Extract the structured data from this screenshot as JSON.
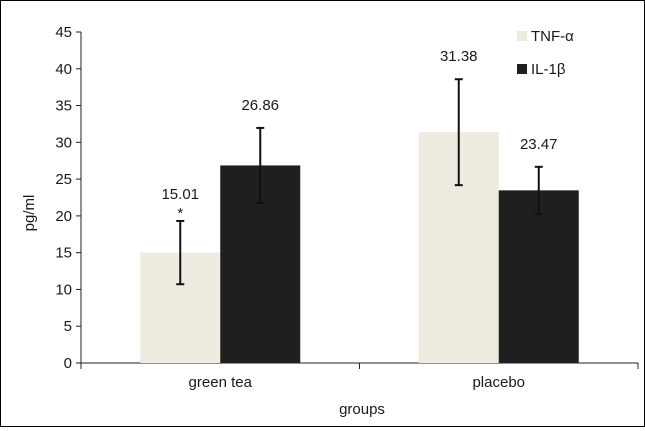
{
  "chart_data": {
    "type": "bar",
    "title": "",
    "xlabel": "groups",
    "ylabel": "pg/ml",
    "ylim": [
      0,
      45
    ],
    "yticks": [
      0,
      5,
      10,
      15,
      20,
      25,
      30,
      35,
      40,
      45
    ],
    "grid": false,
    "legend_position": "top-right",
    "categories": [
      "green tea",
      "placebo"
    ],
    "series": [
      {
        "name": "TNF-α",
        "color": "#eeebe1",
        "values": [
          15.01,
          31.38
        ],
        "value_labels": [
          "15.01",
          "31.38"
        ],
        "errors": [
          4.3,
          7.2
        ],
        "annotations": [
          "*",
          ""
        ]
      },
      {
        "name": "IL-1β",
        "color": "#1f1f1f",
        "values": [
          26.86,
          23.47
        ],
        "value_labels": [
          "26.86",
          "23.47"
        ],
        "errors": [
          5.1,
          3.2
        ],
        "annotations": [
          "",
          ""
        ]
      }
    ]
  }
}
